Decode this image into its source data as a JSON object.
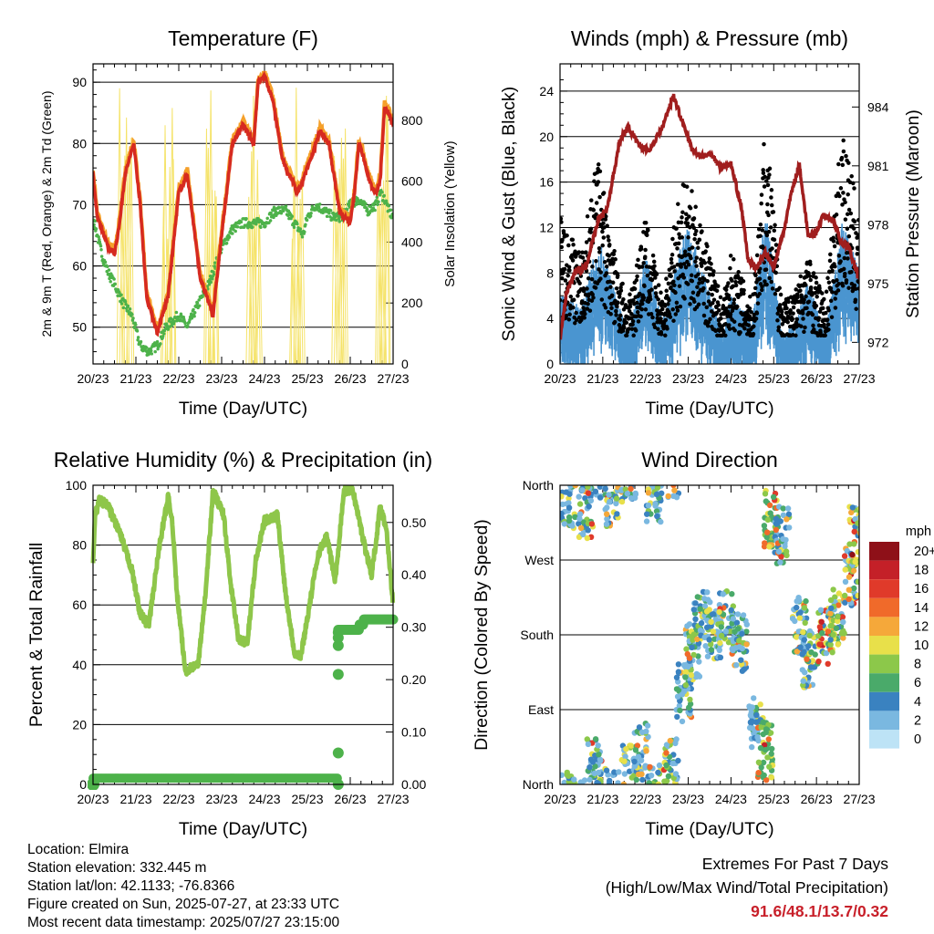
{
  "info": {
    "location": "Location: Elmira",
    "elevation": "Station elevation: 332.445 m",
    "latlon": "Station lat/lon: 42.1133; -76.8366",
    "created": "Figure created on Sun, 2025-07-27, at 23:33 UTC",
    "recent": "Most recent data timestamp: 2025/07/27 23:15:00"
  },
  "extremes": {
    "title": "Extremes For Past 7 Days",
    "subtitle": "(High/Low/Max Wind/Total Precipitation)",
    "values": "91.6/48.1/13.7/0.32"
  },
  "colors": {
    "temp2m": "#d62a20",
    "temp9m": "#f5a02a",
    "dewpoint": "#4db24a",
    "solar": "#f5e36a",
    "gust": "#000000",
    "wind": "#4a95d0",
    "pressure": "#a01e1e",
    "rh": "#8ec64a",
    "precip": "#4db24a"
  },
  "chart_data": [
    {
      "id": "temperature",
      "type": "line",
      "title": "Temperature (F)",
      "xlabel": "Time (Day/UTC)",
      "ylabel": "2m & 9m T (Red, Orange) & 2m Td (Green)",
      "y2label": "Solar Insolation (Yellow)",
      "x_ticks": [
        "20/23",
        "21/23",
        "22/23",
        "23/23",
        "24/23",
        "25/23",
        "26/23",
        "27/23"
      ],
      "xlim": [
        0,
        7
      ],
      "ylim": [
        44,
        93
      ],
      "yticks": [
        50,
        60,
        70,
        80,
        90
      ],
      "y2lim": [
        0,
        985
      ],
      "y2ticks": [
        0,
        200,
        400,
        600,
        800
      ],
      "grid": true,
      "series": [
        {
          "key": "temp",
          "x": [
            0,
            0.1,
            0.2,
            0.35,
            0.5,
            0.6,
            0.75,
            0.95,
            1.1,
            1.25,
            1.5,
            1.75,
            2,
            2.2,
            2.5,
            2.8,
            3.0,
            3.25,
            3.5,
            3.75,
            3.85,
            4.0,
            4.2,
            4.4,
            4.55,
            4.65,
            4.75,
            4.85,
            5.1,
            5.3,
            5.5,
            5.75,
            5.85,
            6.0,
            6.1,
            6.2,
            6.3,
            6.4,
            6.5,
            6.6,
            6.7,
            6.8,
            6.9,
            7.0
          ],
          "y": [
            75,
            68,
            66,
            63,
            62,
            66,
            75,
            80,
            70,
            55,
            49,
            55,
            72,
            75,
            58,
            52,
            65,
            80,
            83,
            80,
            90,
            91,
            87,
            78,
            75,
            74,
            72,
            73,
            78,
            82,
            80,
            69,
            68,
            67,
            72,
            80,
            78,
            75,
            73,
            72,
            74,
            86,
            85,
            83
          ]
        },
        {
          "key": "dew",
          "x": [
            0,
            0.1,
            0.2,
            0.35,
            0.5,
            0.7,
            0.9,
            1.1,
            1.3,
            1.5,
            1.7,
            2.0,
            2.2,
            2.4,
            2.7,
            3.0,
            3.25,
            3.5,
            3.75,
            4.0,
            4.25,
            4.5,
            4.7,
            4.9,
            5.0,
            5.2,
            5.4,
            5.6,
            5.8,
            6.0,
            6.2,
            6.4,
            6.6,
            6.7,
            6.8,
            6.9,
            7.0
          ],
          "y": [
            68,
            65,
            62,
            59,
            57,
            54,
            52,
            47,
            46,
            47,
            50,
            52,
            50,
            53,
            57,
            63,
            66,
            67,
            67,
            67,
            69,
            69,
            67,
            65,
            68,
            70,
            69,
            68,
            68,
            70,
            71,
            69,
            70,
            72,
            71,
            69,
            68
          ]
        },
        {
          "key": "solar",
          "x": [
            0,
            0.55,
            0.7,
            0.85,
            1.0,
            1.55,
            1.7,
            1.85,
            2.0,
            2.55,
            2.75,
            2.9,
            3.0,
            3.55,
            3.7,
            3.85,
            4.0,
            4.55,
            4.7,
            4.85,
            5.0,
            5.55,
            5.75,
            5.85,
            6.0,
            6.55,
            6.7,
            6.85,
            7.0
          ],
          "y": [
            50,
            0,
            900,
            0,
            0,
            0,
            920,
            300,
            0,
            0,
            850,
            200,
            0,
            0,
            950,
            400,
            0,
            0,
            880,
            300,
            0,
            0,
            700,
            100,
            0,
            0,
            900,
            0,
            0
          ]
        }
      ]
    },
    {
      "id": "winds",
      "type": "scatter",
      "title": "Winds (mph) & Pressure (mb)",
      "xlabel": "Time (Day/UTC)",
      "ylabel": "Sonic Wind & Gust (Blue, Black)",
      "y2label": "Station Pressure (Maroon)",
      "x_ticks": [
        "20/23",
        "21/23",
        "22/23",
        "23/23",
        "24/23",
        "25/23",
        "26/23",
        "27/23"
      ],
      "xlim": [
        0,
        7
      ],
      "ylim": [
        0,
        26.4
      ],
      "yticks": [
        0,
        4,
        8,
        12,
        16,
        20,
        24
      ],
      "y2lim": [
        970.9,
        986.2
      ],
      "y2ticks": [
        972,
        975,
        978,
        981,
        984
      ],
      "grid": true,
      "series": [
        {
          "key": "gust_envelope",
          "x": [
            0,
            0.5,
            0.9,
            1.2,
            1.6,
            2.0,
            2.4,
            2.8,
            3.0,
            3.4,
            3.8,
            4.0,
            4.5,
            4.8,
            5.2,
            5.5,
            5.8,
            6.2,
            6.6,
            7.0
          ],
          "y": [
            12,
            9,
            17,
            10,
            5,
            12,
            5,
            14,
            15,
            10,
            5,
            9,
            5,
            20,
            5,
            6,
            9,
            5,
            19,
            12
          ]
        },
        {
          "key": "wind_envelope",
          "x": [
            0,
            0.5,
            0.9,
            1.2,
            1.6,
            2.0,
            2.4,
            2.8,
            3.0,
            3.4,
            3.8,
            4.0,
            4.5,
            4.8,
            5.2,
            5.5,
            5.8,
            6.2,
            6.6,
            7.0
          ],
          "y": [
            5,
            4,
            9,
            6,
            2,
            8,
            3,
            8,
            10,
            6,
            2,
            5,
            3,
            11,
            2,
            3,
            6,
            2,
            10,
            7
          ]
        },
        {
          "key": "pressure",
          "x": [
            0,
            0.15,
            0.35,
            0.6,
            0.9,
            1.1,
            1.4,
            1.6,
            1.85,
            2.1,
            2.4,
            2.65,
            2.9,
            3.1,
            3.3,
            3.55,
            3.75,
            4.0,
            4.25,
            4.4,
            4.6,
            4.8,
            5.0,
            5.25,
            5.4,
            5.6,
            5.8,
            5.95,
            6.15,
            6.4,
            6.6,
            6.75,
            7.0
          ],
          "y": [
            972.2,
            974.5,
            975.6,
            975.8,
            978.3,
            978.8,
            982.3,
            983,
            982,
            981.8,
            983,
            984.6,
            983,
            981.8,
            981.5,
            981.6,
            980.9,
            981.1,
            978.8,
            976.2,
            975.8,
            976.6,
            975.8,
            977.8,
            979.5,
            981.1,
            977.5,
            977.4,
            978.5,
            978.2,
            977,
            976.9,
            975.2
          ]
        }
      ]
    },
    {
      "id": "humidity",
      "type": "line",
      "title": "Relative Humidity (%) & Precipitation (in)",
      "xlabel": "Time (Day/UTC)",
      "ylabel": "Percent & Total Rainfall",
      "x_ticks": [
        "20/23",
        "21/23",
        "22/23",
        "23/23",
        "24/23",
        "25/23",
        "26/23",
        "27/23"
      ],
      "xlim": [
        0,
        7
      ],
      "ylim": [
        0,
        100
      ],
      "yticks": [
        0,
        20,
        40,
        60,
        80,
        100
      ],
      "y2lim": [
        0,
        0.571
      ],
      "y2ticks": [
        "0.00",
        "0.10",
        "0.20",
        "0.30",
        "0.40",
        "0.50"
      ],
      "grid": true,
      "series": [
        {
          "key": "rh",
          "x": [
            0,
            0.05,
            0.15,
            0.35,
            0.6,
            0.9,
            1.1,
            1.3,
            1.55,
            1.75,
            1.85,
            1.95,
            2.15,
            2.45,
            2.6,
            2.8,
            3.05,
            3.2,
            3.4,
            3.6,
            3.8,
            4.0,
            4.3,
            4.5,
            4.7,
            4.85,
            5.05,
            5.25,
            5.45,
            5.65,
            5.85,
            6.05,
            6.3,
            6.5,
            6.7,
            6.85,
            7.0
          ],
          "y": [
            75,
            90,
            95,
            93,
            85,
            72,
            57,
            53,
            80,
            96,
            88,
            65,
            38,
            40,
            60,
            98,
            90,
            68,
            48,
            48,
            75,
            88,
            90,
            63,
            44,
            43,
            60,
            77,
            83,
            68,
            98,
            99,
            82,
            70,
            93,
            85,
            60
          ]
        },
        {
          "key": "precip",
          "x": [
            0,
            5.7,
            5.7,
            5.9,
            6.2,
            6.3,
            7.0
          ],
          "y": [
            0.01,
            0.01,
            0.29,
            0.29,
            0.3,
            0.31,
            0.31
          ]
        }
      ]
    },
    {
      "id": "direction",
      "type": "scatter",
      "title": "Wind Direction",
      "xlabel": "Time (Day/UTC)",
      "ylabel": "Direction (Colored By Speed)",
      "x_ticks": [
        "20/23",
        "21/23",
        "22/23",
        "23/23",
        "24/23",
        "25/23",
        "26/23",
        "27/23"
      ],
      "xlim": [
        0,
        7
      ],
      "ylim": [
        0,
        360
      ],
      "y_tick_labels": [
        "North",
        "East",
        "South",
        "West",
        "North"
      ],
      "y_tick_values": [
        0,
        90,
        180,
        270,
        360
      ],
      "grid": true,
      "legend_title": "mph",
      "legend_labels": [
        "20+",
        "18",
        "16",
        "14",
        "12",
        "10",
        "8",
        "6",
        "4",
        "2",
        "0"
      ],
      "legend_colors": [
        "#8e1018",
        "#c42028",
        "#e03a2a",
        "#f06a2a",
        "#f5a83a",
        "#e8e04a",
        "#8cc84a",
        "#4aaa6a",
        "#3a82c0",
        "#7ab8e0",
        "#bde3f6"
      ],
      "series": [
        {
          "key": "direction_clusters",
          "x": [
            0.2,
            0.6,
            0.8,
            1.2,
            1.6,
            1.9,
            2.2,
            2.6,
            2.9,
            3.1,
            3.3,
            3.6,
            3.9,
            4.2,
            4.6,
            4.8,
            4.95,
            5.2,
            5.6,
            5.8,
            6.2,
            6.5,
            6.8,
            6.95
          ],
          "y": [
            340,
            330,
            20,
            345,
            15,
            40,
            350,
            20,
            110,
            160,
            200,
            185,
            200,
            170,
            75,
            40,
            320,
            300,
            190,
            150,
            180,
            200,
            250,
            300
          ]
        }
      ]
    }
  ]
}
